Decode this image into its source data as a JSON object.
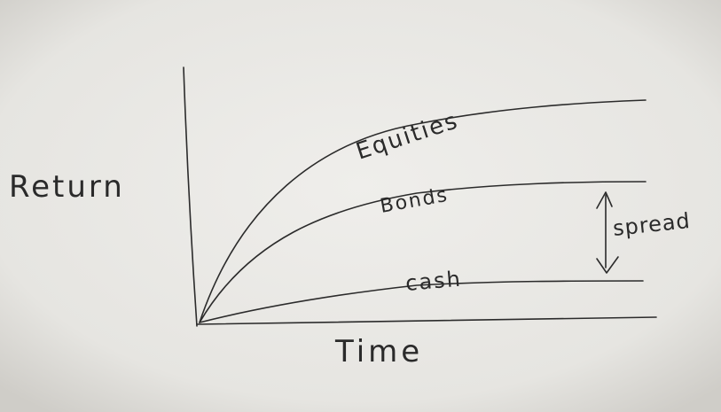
{
  "axes": {
    "y_label": "Return",
    "x_label": "Time"
  },
  "curves": [
    {
      "label": "Equities"
    },
    {
      "label": "Bonds"
    },
    {
      "label": "cash"
    }
  ],
  "annotation": {
    "label": "spread"
  }
}
